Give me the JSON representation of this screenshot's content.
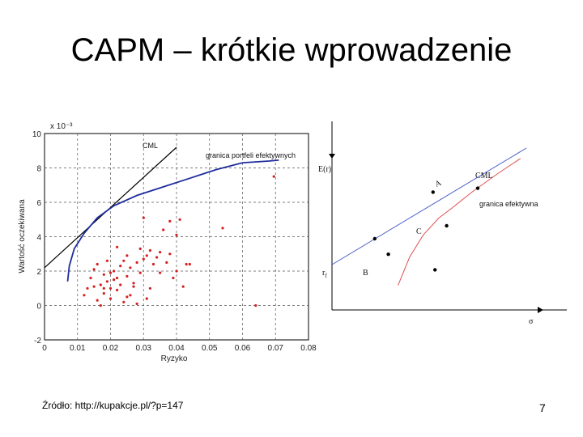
{
  "slide": {
    "title": "CAPM – krótkie wprowadzenie",
    "source": "Źródło: http://kupakcje.pl/?p=147",
    "page_number": "7"
  },
  "chart_data": [
    {
      "type": "scatter",
      "xlabel": "Ryzyko",
      "ylabel": "Wartość oczekiwana",
      "y_exponent_label": "x 10⁻³",
      "xlim": [
        0,
        0.08
      ],
      "ylim": [
        -2,
        10
      ],
      "x_ticks": [
        "0",
        "0.01",
        "0.02",
        "0.03",
        "0.04",
        "0.05",
        "0.06",
        "0.07",
        "0.08"
      ],
      "y_ticks": [
        "-2",
        "0",
        "2",
        "4",
        "6",
        "8",
        "10"
      ],
      "grid": true,
      "annotations": {
        "cml": "CML",
        "frontier": "granica portfeli efektywnych"
      },
      "series": [
        {
          "kind": "line",
          "color": "#000000",
          "points": [
            [
              0,
              2.2
            ],
            [
              0.04,
              9.2
            ]
          ]
        },
        {
          "kind": "line",
          "color": "#1f2d9e",
          "points": [
            [
              0.007,
              1.4
            ],
            [
              0.0075,
              2.3
            ],
            [
              0.009,
              3.3
            ],
            [
              0.012,
              4.2
            ],
            [
              0.016,
              5.1
            ],
            [
              0.021,
              5.8
            ],
            [
              0.028,
              6.4
            ],
            [
              0.036,
              6.9
            ],
            [
              0.044,
              7.4
            ],
            [
              0.052,
              7.9
            ],
            [
              0.06,
              8.3
            ],
            [
              0.068,
              8.4
            ],
            [
              0.071,
              8.45
            ]
          ]
        },
        {
          "kind": "scatter",
          "color": "#d62020",
          "points": [
            [
              0.012,
              0.6
            ],
            [
              0.013,
              1.0
            ],
            [
              0.014,
              1.6
            ],
            [
              0.015,
              2.1
            ],
            [
              0.016,
              2.4
            ],
            [
              0.016,
              0.3
            ],
            [
              0.017,
              1.2
            ],
            [
              0.018,
              1.8
            ],
            [
              0.018,
              0.7
            ],
            [
              0.019,
              1.4
            ],
            [
              0.019,
              2.6
            ],
            [
              0.02,
              1.0
            ],
            [
              0.02,
              0.4
            ],
            [
              0.021,
              2.0
            ],
            [
              0.021,
              1.5
            ],
            [
              0.022,
              3.4
            ],
            [
              0.022,
              0.9
            ],
            [
              0.023,
              2.3
            ],
            [
              0.023,
              1.2
            ],
            [
              0.024,
              2.6
            ],
            [
              0.024,
              0.2
            ],
            [
              0.025,
              1.7
            ],
            [
              0.025,
              2.9
            ],
            [
              0.026,
              0.6
            ],
            [
              0.026,
              2.2
            ],
            [
              0.027,
              1.3
            ],
            [
              0.028,
              2.5
            ],
            [
              0.028,
              0.1
            ],
            [
              0.029,
              3.3
            ],
            [
              0.029,
              1.9
            ],
            [
              0.03,
              5.1
            ],
            [
              0.03,
              2.7
            ],
            [
              0.031,
              0.4
            ],
            [
              0.031,
              2.9
            ],
            [
              0.032,
              1.0
            ],
            [
              0.032,
              3.2
            ],
            [
              0.033,
              2.4
            ],
            [
              0.034,
              2.8
            ],
            [
              0.035,
              3.1
            ],
            [
              0.035,
              1.9
            ],
            [
              0.036,
              4.4
            ],
            [
              0.037,
              2.5
            ],
            [
              0.038,
              4.9
            ],
            [
              0.038,
              3.0
            ],
            [
              0.039,
              1.6
            ],
            [
              0.04,
              4.1
            ],
            [
              0.04,
              2.0
            ],
            [
              0.041,
              5.0
            ],
            [
              0.042,
              1.1
            ],
            [
              0.043,
              2.4
            ],
            [
              0.044,
              2.4
            ],
            [
              0.015,
              1.1
            ],
            [
              0.017,
              0.0
            ],
            [
              0.02,
              1.9
            ],
            [
              0.027,
              1.1
            ],
            [
              0.022,
              1.6
            ],
            [
              0.018,
              1.0
            ],
            [
              0.025,
              0.5
            ],
            [
              0.054,
              4.5
            ],
            [
              0.064,
              0.0
            ],
            [
              0.0695,
              7.5
            ]
          ]
        }
      ]
    },
    {
      "type": "line",
      "ylabel": "E(r)",
      "xlabel": "σ",
      "annotations": {
        "cml": "CML",
        "frontier": "granica efektywna",
        "rf": "r",
        "rf_sub": "f",
        "point_m": "C",
        "point_a": "A",
        "point_b": "B"
      },
      "series": [
        {
          "kind": "line",
          "color": "#4a5fc7",
          "points": [
            [
              0.0,
              0.1
            ],
            [
              1.0,
              1.0
            ]
          ]
        },
        {
          "kind": "line",
          "color": "#e05050",
          "points": [
            [
              0.34,
              -0.06
            ],
            [
              0.4,
              0.16
            ],
            [
              0.47,
              0.33
            ],
            [
              0.55,
              0.46
            ],
            [
              0.62,
              0.54
            ],
            [
              0.72,
              0.66
            ],
            [
              0.85,
              0.8
            ],
            [
              0.97,
              0.92
            ]
          ]
        },
        {
          "kind": "scatter",
          "color": "#000000",
          "points": [
            [
              0.22,
              0.3
            ],
            [
              0.59,
              0.4
            ],
            [
              0.75,
              0.69
            ],
            [
              0.52,
              0.66
            ],
            [
              0.53,
              0.06
            ],
            [
              0.29,
              0.18
            ]
          ]
        }
      ]
    }
  ]
}
